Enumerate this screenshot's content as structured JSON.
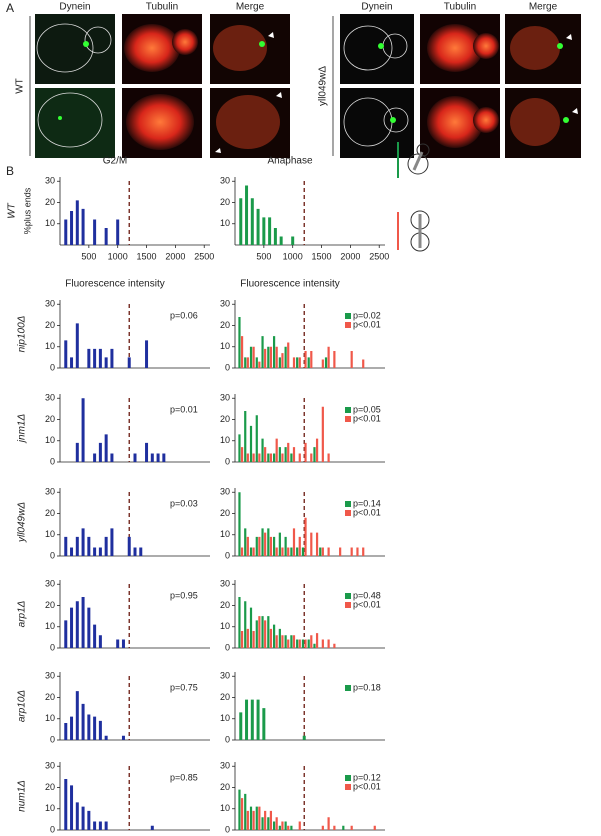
{
  "panel_a": {
    "label": "A",
    "columns": [
      "Dynein",
      "Tubulin",
      "Merge"
    ],
    "strains": [
      "WT",
      "yll049wΔ"
    ]
  },
  "panel_b": {
    "label": "B"
  },
  "chart_data": [
    {
      "type": "bar",
      "title": "G2/M",
      "row_label": "WT",
      "ylabel": "%plus ends",
      "xlim": [
        0,
        2600
      ],
      "xticks": [
        500,
        1000,
        1500,
        2000,
        2500
      ],
      "ylim": [
        0,
        32
      ],
      "yticks": [
        10,
        20,
        30
      ],
      "dashed_line_x": 1200,
      "series": [
        {
          "color": "#1f2f9e",
          "x": [
            100,
            200,
            300,
            400,
            500,
            600,
            700,
            800,
            900,
            1000
          ],
          "values": [
            12,
            16,
            21,
            17,
            0,
            12,
            0,
            8,
            0,
            12
          ]
        }
      ]
    },
    {
      "type": "bar",
      "title": "Anaphase",
      "xlim": [
        0,
        2600
      ],
      "xticks": [
        500,
        1000,
        1500,
        2000,
        2500
      ],
      "ylim": [
        0,
        32
      ],
      "yticks": [
        10,
        20,
        30
      ],
      "dashed_line_x": 1200,
      "series": [
        {
          "color": "#1a9a4a",
          "x": [
            100,
            200,
            300,
            400,
            500,
            600,
            700,
            800,
            900,
            1000
          ],
          "values": [
            22,
            28,
            22,
            17,
            13,
            13,
            8,
            4,
            0,
            4
          ]
        }
      ]
    },
    {
      "type": "bar",
      "title": "Fluorescence intensity",
      "row_label": "nip100Δ",
      "xlim": [
        0,
        2600
      ],
      "ylim": [
        0,
        32
      ],
      "yticks": [
        0,
        10,
        20,
        30
      ],
      "dashed_line_x": 1200,
      "annotation": "p=0.06",
      "series": [
        {
          "color": "#1f2f9e",
          "x": [
            100,
            200,
            300,
            400,
            500,
            600,
            700,
            800,
            900,
            1000,
            1100,
            1200,
            1300,
            1400,
            1500
          ],
          "values": [
            13,
            5,
            21,
            0,
            9,
            9,
            9,
            5,
            9,
            0,
            0,
            5,
            0,
            0,
            13
          ]
        }
      ]
    },
    {
      "type": "bar",
      "title": "Fluorescence intensity",
      "xlim": [
        0,
        2600
      ],
      "ylim": [
        0,
        32
      ],
      "yticks": [
        0,
        10,
        20,
        30
      ],
      "dashed_line_x": 1200,
      "series": [
        {
          "name": "p=0.02",
          "color": "#1a9a4a",
          "x": [
            100,
            200,
            300,
            400,
            500,
            600,
            700,
            800,
            900,
            1000,
            1100,
            1200,
            1300,
            1400,
            1500,
            1600
          ],
          "values": [
            24,
            5,
            10,
            5,
            15,
            10,
            15,
            5,
            10,
            0,
            5,
            0,
            5,
            0,
            0,
            5
          ]
        },
        {
          "name": "p<0.01",
          "color": "#f0584a",
          "x": [
            100,
            200,
            300,
            400,
            500,
            600,
            700,
            800,
            900,
            1000,
            1100,
            1200,
            1300,
            1400,
            1500,
            1600,
            1700,
            1800,
            1900,
            2000,
            2100,
            2200
          ],
          "values": [
            15,
            5,
            10,
            3,
            9,
            10,
            10,
            7,
            12,
            5,
            5,
            8,
            8,
            0,
            4,
            10,
            8,
            0,
            0,
            8,
            0,
            4
          ]
        }
      ]
    },
    {
      "type": "bar",
      "row_label": "jnm1Δ",
      "xlim": [
        0,
        2600
      ],
      "ylim": [
        0,
        32
      ],
      "yticks": [
        0,
        10,
        20,
        30
      ],
      "dashed_line_x": 1200,
      "annotation": "p=0.01",
      "series": [
        {
          "color": "#1f2f9e",
          "x": [
            100,
            200,
            300,
            400,
            500,
            600,
            700,
            800,
            900,
            1000,
            1100,
            1200,
            1300,
            1400,
            1500,
            1600,
            1700,
            1800
          ],
          "values": [
            0,
            0,
            9,
            30,
            0,
            4,
            9,
            13,
            4,
            0,
            0,
            0,
            4,
            0,
            9,
            4,
            4,
            4
          ]
        }
      ]
    },
    {
      "type": "bar",
      "xlim": [
        0,
        2600
      ],
      "ylim": [
        0,
        32
      ],
      "yticks": [
        0,
        10,
        20,
        30
      ],
      "dashed_line_x": 1200,
      "series": [
        {
          "name": "p=0.05",
          "color": "#1a9a4a",
          "x": [
            100,
            200,
            300,
            400,
            500,
            600,
            700,
            800,
            900,
            1000,
            1100,
            1200,
            1300,
            1400
          ],
          "values": [
            13,
            24,
            17,
            22,
            11,
            4,
            4,
            7,
            7,
            4,
            0,
            0,
            0,
            7
          ]
        },
        {
          "name": "p<0.01",
          "color": "#f0584a",
          "x": [
            100,
            200,
            300,
            400,
            500,
            600,
            700,
            800,
            900,
            1000,
            1100,
            1200,
            1300,
            1400,
            1500,
            1600
          ],
          "values": [
            7,
            4,
            4,
            4,
            7,
            4,
            11,
            4,
            9,
            7,
            4,
            9,
            4,
            11,
            26,
            4
          ]
        }
      ]
    },
    {
      "type": "bar",
      "row_label": "yll049wΔ",
      "xlim": [
        0,
        2600
      ],
      "ylim": [
        0,
        32
      ],
      "yticks": [
        0,
        10,
        20,
        30
      ],
      "dashed_line_x": 1200,
      "annotation": "p=0.03",
      "series": [
        {
          "color": "#1f2f9e",
          "x": [
            100,
            200,
            300,
            400,
            500,
            600,
            700,
            800,
            900,
            1000,
            1100,
            1200,
            1300,
            1400
          ],
          "values": [
            9,
            4,
            9,
            13,
            9,
            4,
            4,
            9,
            13,
            0,
            0,
            9,
            4,
            4
          ]
        }
      ]
    },
    {
      "type": "bar",
      "xlim": [
        0,
        2600
      ],
      "ylim": [
        0,
        32
      ],
      "yticks": [
        0,
        10,
        20,
        30
      ],
      "dashed_line_x": 1200,
      "series": [
        {
          "name": "p=0.14",
          "color": "#1a9a4a",
          "x": [
            100,
            200,
            300,
            400,
            500,
            600,
            700,
            800,
            900,
            1000,
            1100,
            1200,
            1300,
            1400,
            1500
          ],
          "values": [
            30,
            13,
            4,
            9,
            13,
            13,
            9,
            11,
            9,
            4,
            4,
            4,
            0,
            0,
            4
          ]
        },
        {
          "name": "p<0.01",
          "color": "#f0584a",
          "x": [
            100,
            200,
            300,
            400,
            500,
            600,
            700,
            800,
            900,
            1000,
            1100,
            1200,
            1300,
            1400,
            1500,
            1600,
            1700,
            1800,
            1900,
            2000,
            2100,
            2200
          ],
          "values": [
            4,
            9,
            4,
            9,
            11,
            9,
            4,
            4,
            4,
            13,
            9,
            18,
            11,
            11,
            4,
            4,
            0,
            4,
            0,
            4,
            4,
            4
          ]
        }
      ]
    },
    {
      "type": "bar",
      "row_label": "arp1Δ",
      "xlim": [
        0,
        2600
      ],
      "ylim": [
        0,
        32
      ],
      "yticks": [
        0,
        10,
        20,
        30
      ],
      "dashed_line_x": 1200,
      "annotation": "p=0.95",
      "series": [
        {
          "color": "#1f2f9e",
          "x": [
            100,
            200,
            300,
            400,
            500,
            600,
            700,
            800,
            900,
            1000,
            1100
          ],
          "values": [
            13,
            19,
            22,
            24,
            19,
            11,
            6,
            0,
            0,
            4,
            4
          ]
        }
      ]
    },
    {
      "type": "bar",
      "xlim": [
        0,
        2600
      ],
      "ylim": [
        0,
        32
      ],
      "yticks": [
        0,
        10,
        20,
        30
      ],
      "dashed_line_x": 1200,
      "series": [
        {
          "name": "p=0.48",
          "color": "#1a9a4a",
          "x": [
            100,
            200,
            300,
            400,
            500,
            600,
            700,
            800,
            900,
            1000,
            1100,
            1200,
            1300,
            1400
          ],
          "values": [
            24,
            22,
            19,
            13,
            15,
            15,
            11,
            9,
            6,
            6,
            4,
            4,
            4,
            2
          ]
        },
        {
          "name": "p<0.01",
          "color": "#f0584a",
          "x": [
            100,
            200,
            300,
            400,
            500,
            600,
            700,
            800,
            900,
            1000,
            1100,
            1200,
            1300,
            1400,
            1500,
            1600,
            1700
          ],
          "values": [
            8,
            9,
            8,
            15,
            13,
            9,
            6,
            6,
            4,
            6,
            4,
            4,
            6,
            7,
            4,
            4,
            2
          ]
        }
      ]
    },
    {
      "type": "bar",
      "row_label": "arp10Δ",
      "xlim": [
        0,
        2600
      ],
      "ylim": [
        0,
        32
      ],
      "yticks": [
        0,
        10,
        20,
        30
      ],
      "dashed_line_x": 1200,
      "annotation": "p=0.75",
      "series": [
        {
          "color": "#1f2f9e",
          "x": [
            100,
            200,
            300,
            400,
            500,
            600,
            700,
            800,
            900,
            1000,
            1100
          ],
          "values": [
            8,
            11,
            23,
            17,
            12,
            11,
            9,
            2,
            0,
            0,
            2
          ]
        }
      ]
    },
    {
      "type": "bar",
      "xlim": [
        0,
        2600
      ],
      "ylim": [
        0,
        32
      ],
      "yticks": [
        0,
        10,
        20,
        30
      ],
      "dashed_line_x": 1200,
      "series": [
        {
          "name": "p=0.18",
          "color": "#1a9a4a",
          "x": [
            100,
            200,
            300,
            400,
            500,
            600,
            700,
            800,
            900,
            1000,
            1100,
            1200
          ],
          "values": [
            13,
            19,
            19,
            19,
            15,
            0,
            0,
            0,
            0,
            0,
            0,
            2
          ]
        }
      ]
    },
    {
      "type": "bar",
      "row_label": "num1Δ",
      "xlim": [
        0,
        2600
      ],
      "ylim": [
        0,
        32
      ],
      "yticks": [
        0,
        10,
        20,
        30
      ],
      "dashed_line_x": 1200,
      "annotation": "p=0.85",
      "series": [
        {
          "color": "#1f2f9e",
          "x": [
            100,
            200,
            300,
            400,
            500,
            600,
            700,
            800,
            900,
            1000,
            1100,
            1200,
            1300,
            1400,
            1500,
            1600
          ],
          "values": [
            24,
            21,
            13,
            11,
            9,
            4,
            4,
            4,
            0,
            0,
            0,
            0,
            0,
            0,
            0,
            2
          ]
        }
      ]
    },
    {
      "type": "bar",
      "xlim": [
        0,
        2600
      ],
      "ylim": [
        0,
        32
      ],
      "yticks": [
        0,
        10,
        20,
        30
      ],
      "dashed_line_x": 1200,
      "series": [
        {
          "name": "p=0.12",
          "color": "#1a9a4a",
          "x": [
            100,
            200,
            300,
            400,
            500,
            600,
            700,
            800,
            900,
            1000,
            1100,
            1200,
            1300,
            1400,
            1500,
            1600,
            1700,
            1800,
            1900
          ],
          "values": [
            19,
            17,
            11,
            11,
            6,
            6,
            4,
            2,
            4,
            2,
            0,
            0,
            0,
            0,
            0,
            0,
            0,
            0,
            2
          ]
        },
        {
          "name": "p<0.01",
          "color": "#f0584a",
          "x": [
            100,
            200,
            300,
            400,
            500,
            600,
            700,
            800,
            900,
            1000,
            1100,
            1200,
            1300,
            1400,
            1500,
            1600,
            1700,
            1800,
            1900,
            2000,
            2100,
            2200,
            2300,
            2400
          ],
          "values": [
            15,
            9,
            9,
            11,
            9,
            9,
            6,
            4,
            2,
            0,
            4,
            0,
            0,
            0,
            2,
            6,
            2,
            0,
            0,
            2,
            0,
            0,
            0,
            2
          ]
        }
      ]
    }
  ]
}
